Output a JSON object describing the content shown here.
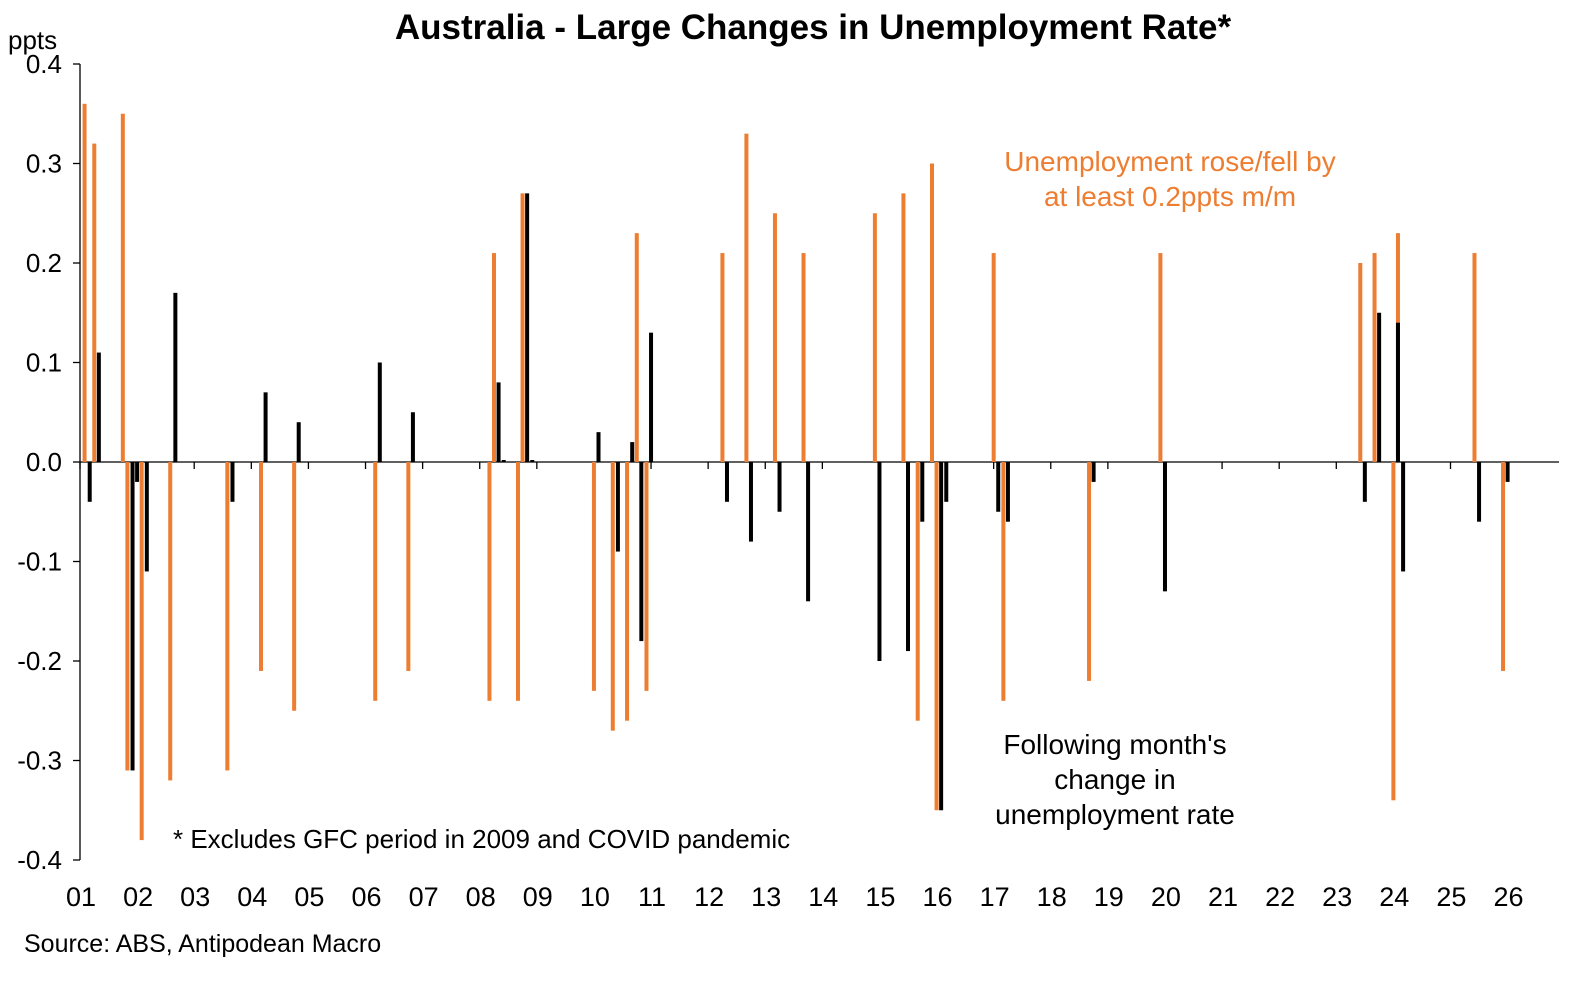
{
  "chart_data": {
    "type": "bar",
    "title": "Australia - Large Changes in Unemployment Rate*",
    "ylabel": "ppts",
    "ylim": [
      -0.4,
      0.4
    ],
    "yticks": [
      "0.4",
      "0.3",
      "0.2",
      "0.1",
      "0.0",
      "-0.1",
      "-0.2",
      "-0.3",
      "-0.4"
    ],
    "xlim": [
      2001.0,
      2026.9
    ],
    "xtick_labels": [
      "01",
      "02",
      "03",
      "04",
      "05",
      "06",
      "07",
      "08",
      "09",
      "10",
      "11",
      "12",
      "13",
      "14",
      "15",
      "16",
      "17",
      "18",
      "19",
      "20",
      "21",
      "22",
      "23",
      "24",
      "25",
      "26"
    ],
    "series": [
      {
        "name": "Unemployment rose/fell by at least 0.2ppts m/m",
        "color": "#ED7D31",
        "points": [
          {
            "x": 2001.08,
            "y": 0.36
          },
          {
            "x": 2001.25,
            "y": 0.32
          },
          {
            "x": 2001.75,
            "y": 0.35
          },
          {
            "x": 2001.83,
            "y": -0.31
          },
          {
            "x": 2002.08,
            "y": -0.38
          },
          {
            "x": 2002.58,
            "y": -0.32
          },
          {
            "x": 2003.58,
            "y": -0.31
          },
          {
            "x": 2004.17,
            "y": -0.21
          },
          {
            "x": 2004.75,
            "y": -0.25
          },
          {
            "x": 2006.17,
            "y": -0.24
          },
          {
            "x": 2006.75,
            "y": -0.21
          },
          {
            "x": 2008.17,
            "y": -0.24
          },
          {
            "x": 2008.25,
            "y": 0.21
          },
          {
            "x": 2008.67,
            "y": -0.24
          },
          {
            "x": 2008.75,
            "y": 0.27
          },
          {
            "x": 2010.0,
            "y": -0.23
          },
          {
            "x": 2010.33,
            "y": -0.27
          },
          {
            "x": 2010.58,
            "y": -0.26
          },
          {
            "x": 2010.75,
            "y": 0.23
          },
          {
            "x": 2010.92,
            "y": -0.23
          },
          {
            "x": 2012.25,
            "y": 0.21
          },
          {
            "x": 2012.67,
            "y": 0.33
          },
          {
            "x": 2013.17,
            "y": 0.25
          },
          {
            "x": 2013.67,
            "y": 0.21
          },
          {
            "x": 2014.92,
            "y": 0.25
          },
          {
            "x": 2015.42,
            "y": 0.27
          },
          {
            "x": 2015.67,
            "y": -0.26
          },
          {
            "x": 2015.92,
            "y": 0.3
          },
          {
            "x": 2016.0,
            "y": -0.35
          },
          {
            "x": 2017.0,
            "y": 0.21
          },
          {
            "x": 2017.17,
            "y": -0.24
          },
          {
            "x": 2018.67,
            "y": -0.22
          },
          {
            "x": 2019.92,
            "y": 0.21
          },
          {
            "x": 2023.42,
            "y": 0.2
          },
          {
            "x": 2023.67,
            "y": 0.21
          },
          {
            "x": 2024.0,
            "y": -0.34
          },
          {
            "x": 2024.08,
            "y": 0.23
          },
          {
            "x": 2025.42,
            "y": 0.21
          },
          {
            "x": 2025.92,
            "y": -0.21
          }
        ]
      },
      {
        "name": "Following month's change in unemployment rate",
        "color": "#000000",
        "points": [
          {
            "x": 2001.17,
            "y": -0.04
          },
          {
            "x": 2001.33,
            "y": 0.11
          },
          {
            "x": 2001.92,
            "y": -0.31
          },
          {
            "x": 2002.0,
            "y": -0.02
          },
          {
            "x": 2002.17,
            "y": -0.11
          },
          {
            "x": 2002.67,
            "y": 0.17
          },
          {
            "x": 2003.67,
            "y": -0.04
          },
          {
            "x": 2004.25,
            "y": 0.07
          },
          {
            "x": 2004.83,
            "y": 0.04
          },
          {
            "x": 2006.25,
            "y": 0.1
          },
          {
            "x": 2006.83,
            "y": 0.05
          },
          {
            "x": 2008.33,
            "y": 0.08
          },
          {
            "x": 2008.42,
            "y": 0.002
          },
          {
            "x": 2008.83,
            "y": 0.27
          },
          {
            "x": 2008.92,
            "y": 0.002
          },
          {
            "x": 2010.08,
            "y": 0.03
          },
          {
            "x": 2010.42,
            "y": -0.09
          },
          {
            "x": 2010.67,
            "y": 0.02
          },
          {
            "x": 2010.83,
            "y": -0.18
          },
          {
            "x": 2011.0,
            "y": 0.13
          },
          {
            "x": 2012.33,
            "y": -0.04
          },
          {
            "x": 2012.75,
            "y": -0.08
          },
          {
            "x": 2013.25,
            "y": -0.05
          },
          {
            "x": 2013.75,
            "y": -0.14
          },
          {
            "x": 2015.0,
            "y": -0.2
          },
          {
            "x": 2015.5,
            "y": -0.19
          },
          {
            "x": 2015.75,
            "y": -0.06
          },
          {
            "x": 2016.08,
            "y": -0.35
          },
          {
            "x": 2016.17,
            "y": -0.04
          },
          {
            "x": 2017.08,
            "y": -0.05
          },
          {
            "x": 2017.25,
            "y": -0.06
          },
          {
            "x": 2018.75,
            "y": -0.02
          },
          {
            "x": 2020.0,
            "y": -0.13
          },
          {
            "x": 2023.5,
            "y": -0.04
          },
          {
            "x": 2023.75,
            "y": 0.15
          },
          {
            "x": 2024.08,
            "y": 0.14
          },
          {
            "x": 2024.17,
            "y": -0.11
          },
          {
            "x": 2025.5,
            "y": -0.06
          },
          {
            "x": 2026.0,
            "y": -0.02
          }
        ]
      }
    ],
    "annotations": {
      "orange": [
        "Unemployment rose/fell by",
        "at least 0.2ppts m/m"
      ],
      "black": [
        "Following month's",
        "change in",
        "unemployment rate"
      ]
    },
    "note": "* Excludes GFC period in 2009 and COVID pandemic",
    "source": "Source: ABS, Antipodean Macro",
    "grid": false
  }
}
